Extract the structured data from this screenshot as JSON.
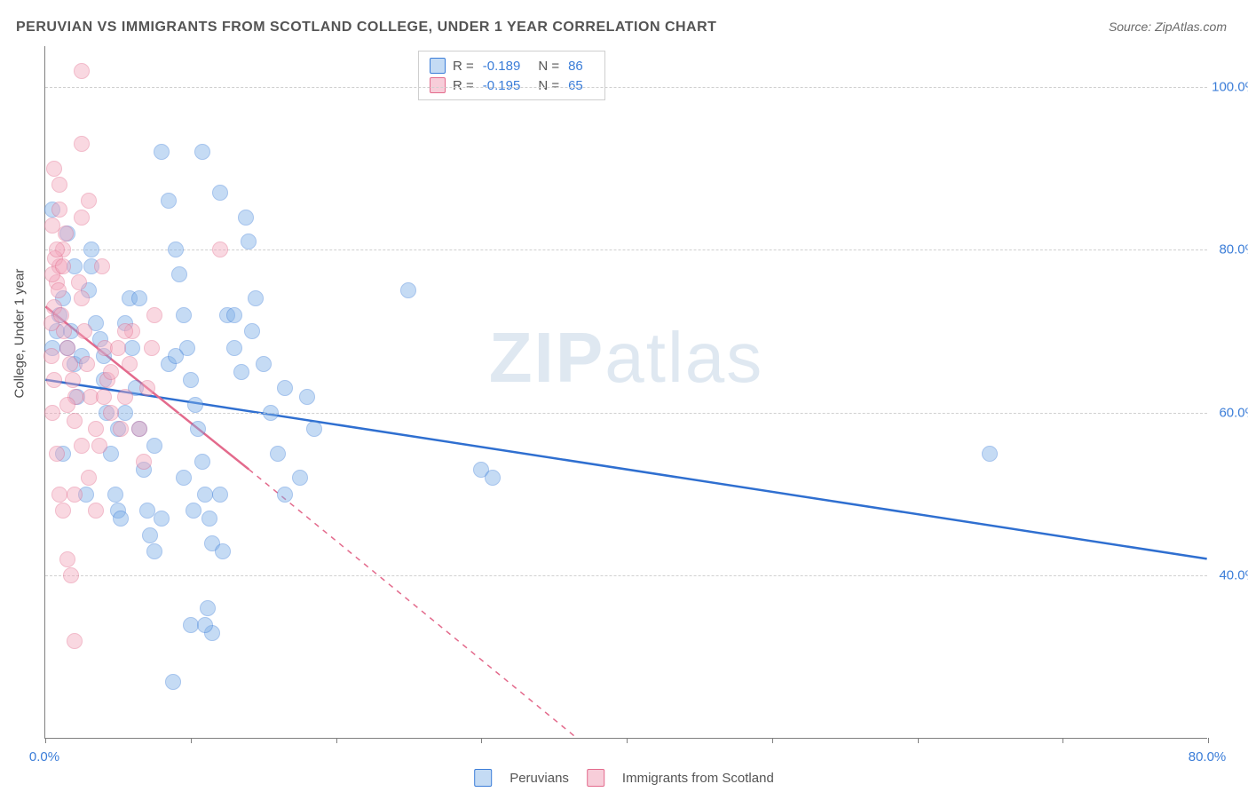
{
  "title": "PERUVIAN VS IMMIGRANTS FROM SCOTLAND COLLEGE, UNDER 1 YEAR CORRELATION CHART",
  "source": "Source: ZipAtlas.com",
  "y_axis_label": "College, Under 1 year",
  "watermark_a": "ZIP",
  "watermark_b": "atlas",
  "chart": {
    "type": "scatter",
    "xlim": [
      0,
      80
    ],
    "ylim": [
      20,
      105
    ],
    "x_ticks": [
      0,
      10,
      20,
      30,
      40,
      50,
      60,
      70,
      80
    ],
    "x_tick_labels": {
      "0": "0.0%",
      "80": "80.0%"
    },
    "y_ticks": [
      40,
      60,
      80,
      100
    ],
    "y_tick_labels": {
      "40": "40.0%",
      "60": "60.0%",
      "80": "80.0%",
      "100": "100.0%"
    },
    "background": "#ffffff",
    "grid_color": "#d0d0d0",
    "axis_color": "#808080",
    "marker_radius": 9,
    "marker_opacity": 0.45,
    "series": [
      {
        "name": "Peruvians",
        "fill_color": "#7fb0e8",
        "stroke_color": "#3b7dd8",
        "swatch_fill": "#c4dbf4",
        "swatch_border": "#3b7dd8",
        "r": "-0.189",
        "n": "86",
        "trend": {
          "x1": 0,
          "y1": 64,
          "x2": 80,
          "y2": 42,
          "color": "#2f6fd0",
          "width": 2.5,
          "dash_after": 80
        },
        "points": [
          [
            0.5,
            68
          ],
          [
            0.8,
            70
          ],
          [
            1.0,
            72
          ],
          [
            1.2,
            74
          ],
          [
            1.5,
            68
          ],
          [
            1.8,
            70
          ],
          [
            2.0,
            66
          ],
          [
            2.2,
            62
          ],
          [
            2.5,
            67
          ],
          [
            0.5,
            85
          ],
          [
            3.0,
            75
          ],
          [
            3.2,
            78
          ],
          [
            3.5,
            71
          ],
          [
            3.8,
            69
          ],
          [
            4.0,
            64
          ],
          [
            4.2,
            60
          ],
          [
            4.5,
            55
          ],
          [
            4.8,
            50
          ],
          [
            5.0,
            48
          ],
          [
            5.2,
            47
          ],
          [
            1.2,
            55
          ],
          [
            5.5,
            71
          ],
          [
            5.8,
            74
          ],
          [
            6.0,
            68
          ],
          [
            6.2,
            63
          ],
          [
            6.5,
            58
          ],
          [
            6.8,
            53
          ],
          [
            7.0,
            48
          ],
          [
            7.2,
            45
          ],
          [
            7.5,
            43
          ],
          [
            8.0,
            92
          ],
          [
            8.5,
            86
          ],
          [
            9.0,
            80
          ],
          [
            9.2,
            77
          ],
          [
            9.5,
            72
          ],
          [
            9.8,
            68
          ],
          [
            10.0,
            64
          ],
          [
            10.3,
            61
          ],
          [
            10.5,
            58
          ],
          [
            10.8,
            54
          ],
          [
            11.0,
            50
          ],
          [
            11.3,
            47
          ],
          [
            11.5,
            44
          ],
          [
            12.0,
            87
          ],
          [
            12.5,
            72
          ],
          [
            13.0,
            68
          ],
          [
            13.5,
            65
          ],
          [
            14.0,
            81
          ],
          [
            14.5,
            74
          ],
          [
            15.0,
            66
          ],
          [
            10.8,
            92
          ],
          [
            15.5,
            60
          ],
          [
            16.0,
            55
          ],
          [
            16.5,
            50
          ],
          [
            12.2,
            43
          ],
          [
            17.5,
            52
          ],
          [
            18.0,
            62
          ],
          [
            18.5,
            58
          ],
          [
            11.2,
            36
          ],
          [
            11.5,
            33
          ],
          [
            10.0,
            34
          ],
          [
            11.0,
            34
          ],
          [
            8.8,
            27
          ],
          [
            12.0,
            50
          ],
          [
            5.0,
            58
          ],
          [
            2.8,
            50
          ],
          [
            3.2,
            80
          ],
          [
            2.0,
            78
          ],
          [
            1.5,
            82
          ],
          [
            8.5,
            66
          ],
          [
            9.0,
            67
          ],
          [
            9.5,
            52
          ],
          [
            10.2,
            48
          ],
          [
            25.0,
            75
          ],
          [
            30.0,
            53
          ],
          [
            30.8,
            52
          ],
          [
            65.0,
            55
          ],
          [
            14.2,
            70
          ],
          [
            13.0,
            72
          ],
          [
            6.5,
            74
          ],
          [
            4.0,
            67
          ],
          [
            5.5,
            60
          ],
          [
            7.5,
            56
          ],
          [
            8.0,
            47
          ],
          [
            16.5,
            63
          ],
          [
            13.8,
            84
          ]
        ]
      },
      {
        "name": "Immigrants from Scotland",
        "fill_color": "#f3a9be",
        "stroke_color": "#e36a8c",
        "swatch_fill": "#f7cdd9",
        "swatch_border": "#e36a8c",
        "r": "-0.195",
        "n": "65",
        "trend": {
          "x1": 0,
          "y1": 73,
          "x2": 14,
          "y2": 53,
          "color": "#e36a8c",
          "width": 2.5,
          "dash_x1": 14,
          "dash_y1": 53,
          "dash_x2": 40,
          "dash_y2": 15
        },
        "points": [
          [
            0.4,
            71
          ],
          [
            0.6,
            73
          ],
          [
            0.8,
            76
          ],
          [
            1.0,
            78
          ],
          [
            1.2,
            80
          ],
          [
            1.4,
            82
          ],
          [
            0.5,
            83
          ],
          [
            0.7,
            79
          ],
          [
            0.9,
            75
          ],
          [
            1.1,
            72
          ],
          [
            1.3,
            70
          ],
          [
            1.5,
            68
          ],
          [
            1.7,
            66
          ],
          [
            1.9,
            64
          ],
          [
            2.1,
            62
          ],
          [
            2.3,
            76
          ],
          [
            2.5,
            74
          ],
          [
            2.7,
            70
          ],
          [
            2.9,
            66
          ],
          [
            3.1,
            62
          ],
          [
            2.5,
            102
          ],
          [
            0.6,
            90
          ],
          [
            2.5,
            93
          ],
          [
            3.5,
            58
          ],
          [
            3.7,
            56
          ],
          [
            3.9,
            78
          ],
          [
            4.1,
            68
          ],
          [
            4.3,
            64
          ],
          [
            4.5,
            60
          ],
          [
            1.0,
            88
          ],
          [
            0.5,
            60
          ],
          [
            0.8,
            55
          ],
          [
            1.0,
            50
          ],
          [
            1.2,
            48
          ],
          [
            1.5,
            42
          ],
          [
            1.8,
            40
          ],
          [
            2.0,
            50
          ],
          [
            0.4,
            67
          ],
          [
            0.6,
            64
          ],
          [
            12.0,
            80
          ],
          [
            5.2,
            58
          ],
          [
            5.5,
            62
          ],
          [
            5.8,
            66
          ],
          [
            6.0,
            70
          ],
          [
            2.0,
            32
          ],
          [
            6.5,
            58
          ],
          [
            6.8,
            54
          ],
          [
            7.0,
            63
          ],
          [
            7.3,
            68
          ],
          [
            7.5,
            72
          ],
          [
            2.5,
            84
          ],
          [
            3.0,
            86
          ],
          [
            1.0,
            85
          ],
          [
            0.5,
            77
          ],
          [
            0.8,
            80
          ],
          [
            1.2,
            78
          ],
          [
            4.0,
            62
          ],
          [
            4.5,
            65
          ],
          [
            5.0,
            68
          ],
          [
            5.5,
            70
          ],
          [
            1.5,
            61
          ],
          [
            2.0,
            59
          ],
          [
            2.5,
            56
          ],
          [
            3.0,
            52
          ],
          [
            3.5,
            48
          ]
        ]
      }
    ]
  },
  "stats_labels": {
    "r": "R =",
    "n": "N ="
  },
  "legend_labels": [
    "Peruvians",
    "Immigrants from Scotland"
  ]
}
